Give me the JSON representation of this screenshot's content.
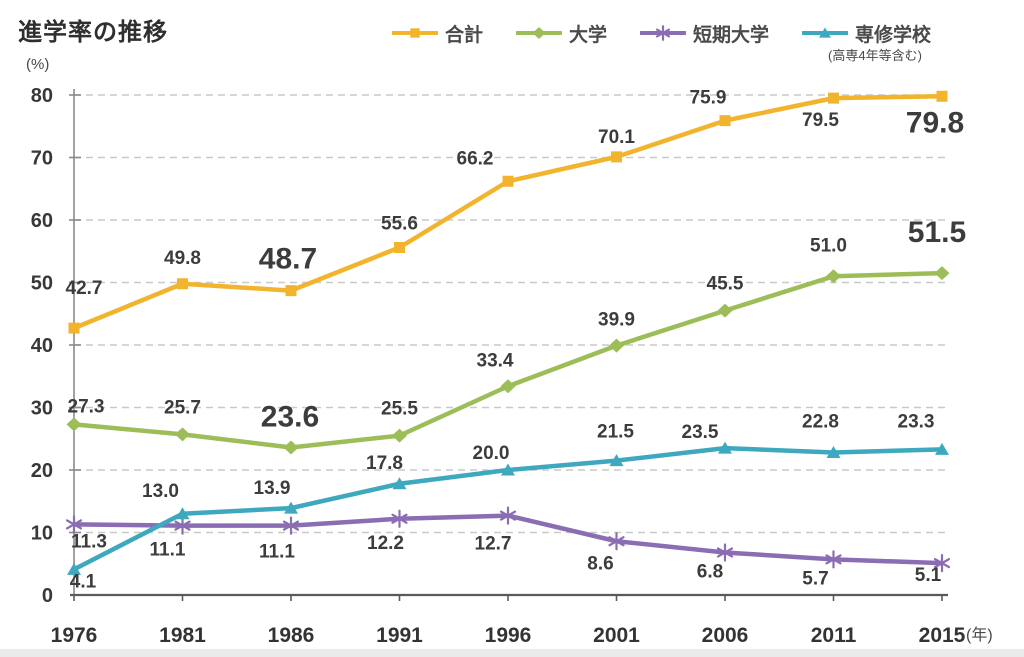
{
  "page": {
    "title": "進学率の推移",
    "unit_label": "(%)",
    "year_suffix": "(年)"
  },
  "chart_data": {
    "type": "line",
    "title": "進学率の推移",
    "ylabel": "(%)",
    "xlabel": "(年)",
    "ylim": [
      0,
      80
    ],
    "ytick_step": 10,
    "grid": "horizontal-dashed",
    "legend_position": "top",
    "categories": [
      "1976",
      "1981",
      "1986",
      "1991",
      "1996",
      "2001",
      "2006",
      "2011",
      "2015"
    ],
    "series": [
      {
        "name": "合計",
        "color": "#F2B42C",
        "marker": "square",
        "values": [
          42.7,
          49.8,
          48.7,
          55.6,
          66.2,
          70.1,
          75.9,
          79.5,
          79.8
        ],
        "emphasized_points": [
          2,
          8
        ]
      },
      {
        "name": "大学",
        "color": "#9CBD57",
        "marker": "diamond",
        "values": [
          27.3,
          25.7,
          23.6,
          25.5,
          33.4,
          39.9,
          45.5,
          51.0,
          51.5
        ],
        "emphasized_points": [
          2,
          8
        ]
      },
      {
        "name": "短期大学",
        "color": "#8A6DB3",
        "marker": "asterisk",
        "values": [
          11.3,
          11.1,
          11.1,
          12.2,
          12.7,
          8.6,
          6.8,
          5.7,
          5.1
        ],
        "emphasized_points": []
      },
      {
        "name": "専修学校",
        "color": "#3EA9BE",
        "marker": "triangle",
        "note": "(高専4年等含む)",
        "values": [
          4.1,
          13.0,
          13.9,
          17.8,
          20.0,
          21.5,
          23.5,
          22.8,
          23.3
        ],
        "emphasized_points": []
      }
    ],
    "colors": {
      "data_label": "#3C3C3C",
      "axis_line": "#8a8a8a",
      "baseline": "#5a5a5a",
      "gridline": "#C9C9C9",
      "tick_label": "#383838",
      "year_label": "#333333",
      "suffix_label": "#4a4a4a"
    }
  }
}
